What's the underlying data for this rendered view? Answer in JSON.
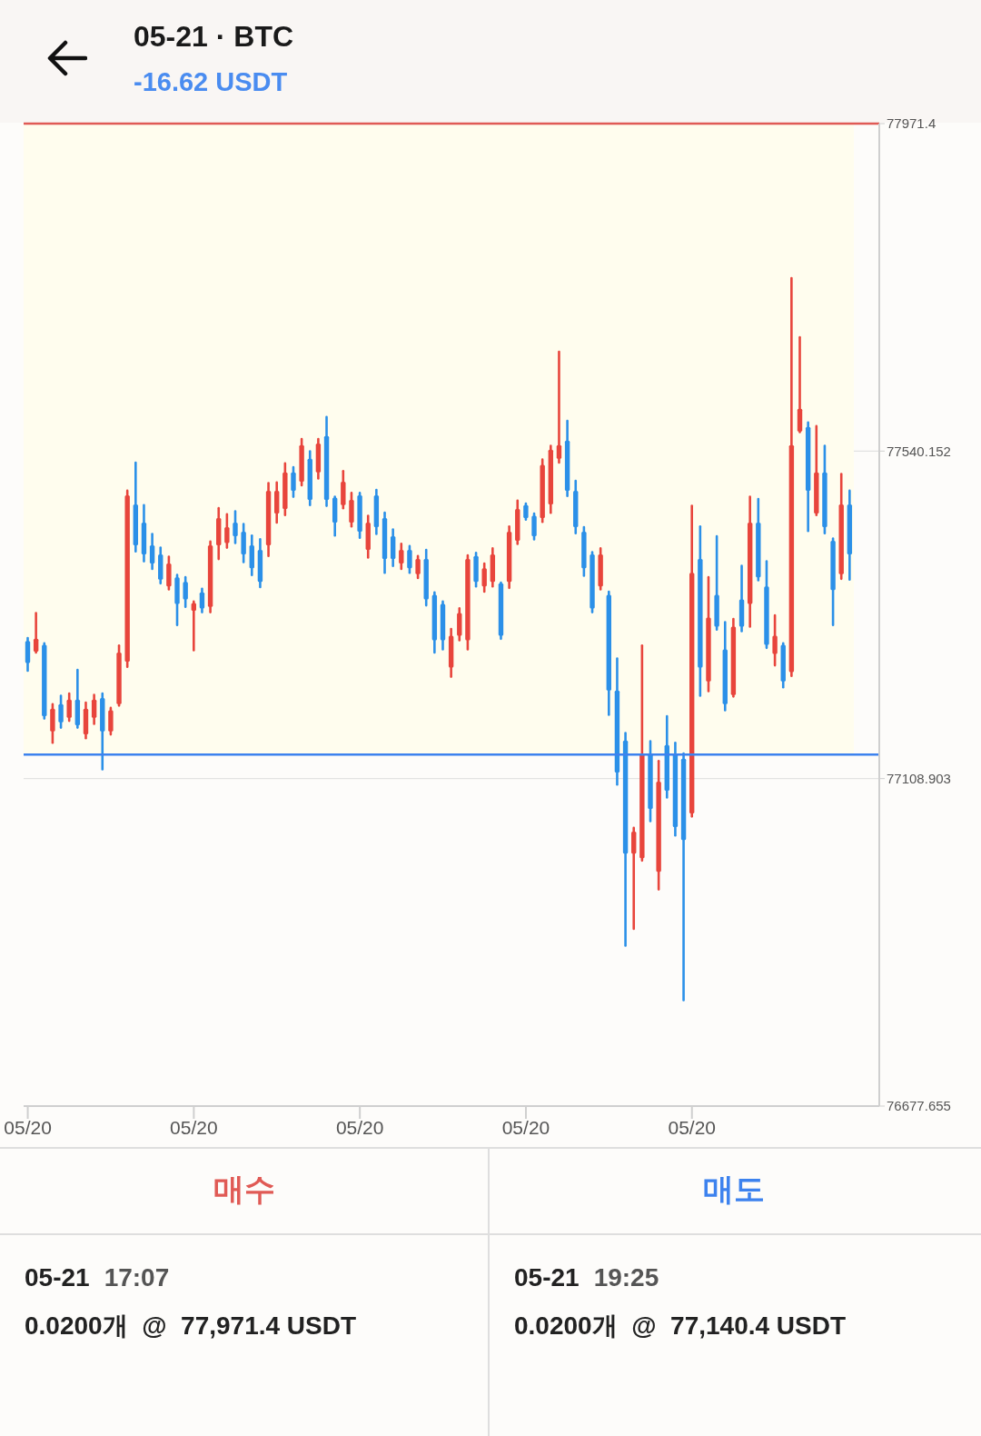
{
  "chart_data": {
    "type": "candlestick",
    "title": "05-21 · BTC",
    "subtitle": "-16.62 USDT",
    "categories": [
      "05/20",
      null,
      null,
      null,
      null,
      null,
      null,
      null,
      null,
      null,
      null,
      null,
      null,
      null,
      null,
      null,
      null,
      null,
      null,
      null,
      "05/20",
      null,
      null,
      null,
      null,
      null,
      null,
      null,
      null,
      null,
      null,
      null,
      null,
      null,
      null,
      null,
      null,
      null,
      null,
      null,
      "05/20",
      null,
      null,
      null,
      null,
      null,
      null,
      null,
      null,
      null,
      null,
      null,
      null,
      null,
      null,
      null,
      null,
      null,
      null,
      null,
      "05/20",
      null,
      null,
      null,
      null,
      null,
      null,
      null,
      null,
      null,
      null,
      null,
      null,
      null,
      null,
      null,
      null,
      null,
      null,
      null,
      "05/20",
      null,
      null,
      null,
      null,
      null,
      null,
      null,
      null,
      null,
      null,
      null,
      null,
      null,
      null,
      null,
      null,
      null,
      null,
      null
    ],
    "ohlc": [
      [
        77290,
        77294,
        77251,
        77261
      ],
      [
        77276,
        77327,
        77275,
        77293
      ],
      [
        77285,
        77287,
        77188,
        77191
      ],
      [
        77171,
        77207,
        77156,
        77201
      ],
      [
        77207,
        77218,
        77176,
        77183
      ],
      [
        77189,
        77221,
        77185,
        77213
      ],
      [
        77213,
        77252,
        77176,
        77179
      ],
      [
        77167,
        77209,
        77162,
        77201
      ],
      [
        77189,
        77219,
        77181,
        77213
      ],
      [
        77215,
        77221,
        77121,
        77171
      ],
      [
        77171,
        77202,
        77167,
        77199
      ],
      [
        77207,
        77284,
        77205,
        77275
      ],
      [
        77263,
        77488,
        77256,
        77482
      ],
      [
        77470,
        77525,
        77408,
        77416
      ],
      [
        77446,
        77469,
        77395,
        77404
      ],
      [
        77416,
        77431,
        77385,
        77392
      ],
      [
        77404,
        77413,
        77366,
        77371
      ],
      [
        77362,
        77401,
        77358,
        77392
      ],
      [
        77374,
        77377,
        77311,
        77339
      ],
      [
        77368,
        77374,
        77335,
        77345
      ],
      [
        77330,
        77342,
        77278,
        77340
      ],
      [
        77354,
        77359,
        77328,
        77333
      ],
      [
        77335,
        77421,
        77328,
        77416
      ],
      [
        77416,
        77465,
        77398,
        77452
      ],
      [
        77419,
        77457,
        77413,
        77440
      ],
      [
        77446,
        77461,
        77419,
        77428
      ],
      [
        77434,
        77444,
        77394,
        77404
      ],
      [
        77416,
        77429,
        77377,
        77386
      ],
      [
        77410,
        77424,
        77361,
        77368
      ],
      [
        77416,
        77498,
        77402,
        77488
      ],
      [
        77458,
        77499,
        77446,
        77488
      ],
      [
        77464,
        77524,
        77456,
        77512
      ],
      [
        77512,
        77519,
        77480,
        77488
      ],
      [
        77500,
        77556,
        77495,
        77548
      ],
      [
        77530,
        77540,
        77469,
        77476
      ],
      [
        77512,
        77556,
        77504,
        77550
      ],
      [
        77560,
        77585,
        77468,
        77476
      ],
      [
        77479,
        77480,
        77429,
        77446
      ],
      [
        77469,
        77514,
        77465,
        77500
      ],
      [
        77446,
        77485,
        77441,
        77476
      ],
      [
        77482,
        77485,
        77426,
        77434
      ],
      [
        77410,
        77455,
        77400,
        77446
      ],
      [
        77482,
        77489,
        77431,
        77440
      ],
      [
        77452,
        77459,
        77380,
        77398
      ],
      [
        77428,
        77437,
        77389,
        77398
      ],
      [
        77392,
        77418,
        77385,
        77410
      ],
      [
        77410,
        77415,
        77380,
        77386
      ],
      [
        77378,
        77402,
        77373,
        77398
      ],
      [
        77398,
        77410,
        77337,
        77345
      ],
      [
        77351,
        77354,
        77275,
        77291
      ],
      [
        77339,
        77342,
        77279,
        77291
      ],
      [
        77255,
        77306,
        77243,
        77297
      ],
      [
        77297,
        77333,
        77291,
        77327
      ],
      [
        77291,
        77403,
        77279,
        77398
      ],
      [
        77402,
        77406,
        77362,
        77368
      ],
      [
        77362,
        77392,
        77355,
        77386
      ],
      [
        77368,
        77412,
        77362,
        77404
      ],
      [
        77366,
        77367,
        77293,
        77297
      ],
      [
        77368,
        77441,
        77360,
        77434
      ],
      [
        77422,
        77475,
        77418,
        77464
      ],
      [
        77469,
        77471,
        77450,
        77452
      ],
      [
        77455,
        77458,
        77424,
        77428
      ],
      [
        77452,
        77529,
        77447,
        77522
      ],
      [
        77470,
        77547,
        77459,
        77542
      ],
      [
        77530,
        77671,
        77525,
        77548
      ],
      [
        77554,
        77580,
        77481,
        77488
      ],
      [
        77488,
        77501,
        77432,
        77440
      ],
      [
        77434,
        77440,
        77376,
        77386
      ],
      [
        77404,
        77407,
        77328,
        77333
      ],
      [
        77362,
        77412,
        77358,
        77404
      ],
      [
        77351,
        77355,
        77193,
        77225
      ],
      [
        77225,
        77267,
        77101,
        77117
      ],
      [
        77159,
        77169,
        76889,
        77010
      ],
      [
        77010,
        77044,
        76911,
        77039
      ],
      [
        77004,
        77284,
        77001,
        77141
      ],
      [
        77141,
        77158,
        77053,
        77069
      ],
      [
        76986,
        77132,
        76963,
        77105
      ],
      [
        77153,
        77191,
        77084,
        77093
      ],
      [
        77141,
        77156,
        77034,
        77045
      ],
      [
        77135,
        77142,
        76817,
        77028
      ],
      [
        77063,
        77468,
        77059,
        77380
      ],
      [
        77398,
        77441,
        77218,
        77255
      ],
      [
        77237,
        77374,
        77224,
        77321
      ],
      [
        77351,
        77428,
        77305,
        77309
      ],
      [
        77279,
        77315,
        77199,
        77207
      ],
      [
        77219,
        77319,
        77217,
        77309
      ],
      [
        77345,
        77389,
        77303,
        77309
      ],
      [
        77339,
        77480,
        77309,
        77446
      ],
      [
        77446,
        77477,
        77370,
        77374
      ],
      [
        77362,
        77395,
        77281,
        77285
      ],
      [
        77273,
        77324,
        77258,
        77297
      ],
      [
        77285,
        77287,
        77229,
        77237
      ],
      [
        77249,
        77768,
        77244,
        77548
      ],
      [
        77566,
        77690,
        77565,
        77596
      ],
      [
        77572,
        77578,
        77435,
        77488
      ],
      [
        77458,
        77573,
        77456,
        77512
      ],
      [
        77512,
        77547,
        77432,
        77440
      ],
      [
        77422,
        77425,
        77311,
        77357
      ],
      [
        77378,
        77510,
        77372,
        77470
      ],
      [
        77470,
        77488,
        77371,
        77404
      ]
    ],
    "colors": [
      "#2b90e8",
      "#e8453c",
      "#2b90e8",
      "#e8453c",
      "#2b90e8",
      "#e8453c",
      "#2b90e8",
      "#e8453c",
      "#e8453c",
      "#2b90e8",
      "#e8453c",
      "#e8453c",
      "#e8453c",
      "#2b90e8",
      "#2b90e8",
      "#2b90e8",
      "#2b90e8",
      "#e8453c",
      "#2b90e8",
      "#2b90e8",
      "#e8453c",
      "#2b90e8",
      "#e8453c",
      "#e8453c",
      "#e8453c",
      "#2b90e8",
      "#2b90e8",
      "#2b90e8",
      "#2b90e8",
      "#e8453c",
      "#e8453c",
      "#e8453c",
      "#2b90e8",
      "#e8453c",
      "#2b90e8",
      "#e8453c",
      "#2b90e8",
      "#2b90e8",
      "#e8453c",
      "#e8453c",
      "#2b90e8",
      "#e8453c",
      "#2b90e8",
      "#2b90e8",
      "#2b90e8",
      "#e8453c",
      "#2b90e8",
      "#e8453c",
      "#2b90e8",
      "#2b90e8",
      "#2b90e8",
      "#e8453c",
      "#e8453c",
      "#e8453c",
      "#2b90e8",
      "#e8453c",
      "#e8453c",
      "#2b90e8",
      "#e8453c",
      "#e8453c",
      "#2b90e8",
      "#2b90e8",
      "#e8453c",
      "#e8453c",
      "#e8453c",
      "#2b90e8",
      "#2b90e8",
      "#2b90e8",
      "#2b90e8",
      "#e8453c",
      "#2b90e8",
      "#2b90e8",
      "#2b90e8",
      "#e8453c",
      "#e8453c",
      "#2b90e8",
      "#e8453c",
      "#2b90e8",
      "#2b90e8",
      "#2b90e8",
      "#e8453c",
      "#2b90e8",
      "#e8453c",
      "#2b90e8",
      "#2b90e8",
      "#e8453c",
      "#2b90e8",
      "#e8453c",
      "#2b90e8",
      "#2b90e8",
      "#e8453c",
      "#2b90e8",
      "#e8453c",
      "#e8453c",
      "#2b90e8",
      "#e8453c",
      "#2b90e8",
      "#2b90e8",
      "#e8453c",
      "#2b90e8"
    ],
    "ylim": [
      76677.655,
      77971.4
    ],
    "yticks": [
      76677.655,
      77108.903,
      77540.152,
      77971.4
    ],
    "grid": "y",
    "ref_lines": [
      {
        "axis": "y",
        "value": 77971.4,
        "color": "#e05a55"
      },
      {
        "axis": "y",
        "value": 77140.4,
        "color": "#3d82ee"
      }
    ],
    "bands": [
      {
        "axis": "y",
        "from": 77140.4,
        "to": 77971.4,
        "color": "#fffdee"
      }
    ],
    "annotations": [
      "매수",
      "05-21  17:07",
      "0.0200개  @  77,971.4 USDT",
      "매도",
      "05-21  19:25",
      "0.0200개  @  77,140.4 USDT"
    ]
  }
}
